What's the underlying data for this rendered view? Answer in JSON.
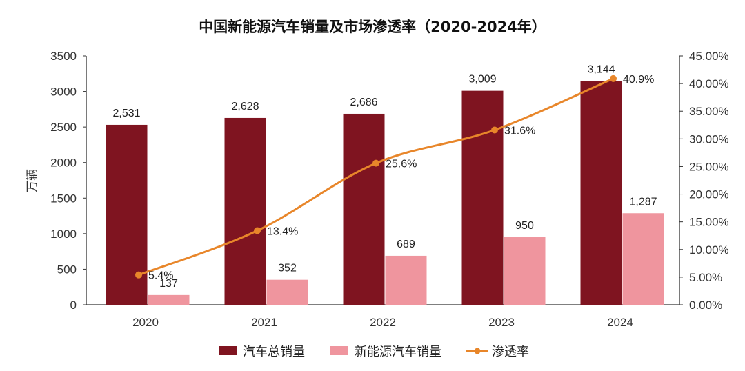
{
  "chart_data": {
    "type": "bar",
    "title": "中国新能源汽车销量及市场渗透率（2020-2024年）",
    "ylabel": "万辆",
    "categories": [
      "2020",
      "2021",
      "2022",
      "2023",
      "2024"
    ],
    "ylim": [
      0,
      3500
    ],
    "yticks": [
      "0",
      "500",
      "1000",
      "1500",
      "2000",
      "2500",
      "3000",
      "3500"
    ],
    "y2lim": [
      0,
      45
    ],
    "y2ticks": [
      "0.00%",
      "5.00%",
      "10.00%",
      "15.00%",
      "20.00%",
      "25.00%",
      "30.00%",
      "35.00%",
      "40.00%",
      "45.00%"
    ],
    "series": [
      {
        "name": "汽车总销量",
        "kind": "bar",
        "color": "#7f1420",
        "values": [
          2531,
          2628,
          2686,
          3009,
          3144
        ],
        "labels": [
          "2,531",
          "2,628",
          "2,686",
          "3,009",
          "3,144"
        ]
      },
      {
        "name": "新能源汽车销量",
        "kind": "bar",
        "color": "#ef959e",
        "values": [
          137,
          352,
          689,
          950,
          1287
        ],
        "labels": [
          "137",
          "352",
          "689",
          "950",
          "1,287"
        ]
      },
      {
        "name": "渗透率",
        "kind": "line",
        "axis": "right",
        "color": "#e8862a",
        "values": [
          5.4,
          13.4,
          25.6,
          31.6,
          40.9
        ],
        "labels": [
          "5.4%",
          "13.4%",
          "25.6%",
          "31.6%",
          "40.9%"
        ]
      }
    ],
    "grid": false,
    "legend_position": "bottom"
  }
}
